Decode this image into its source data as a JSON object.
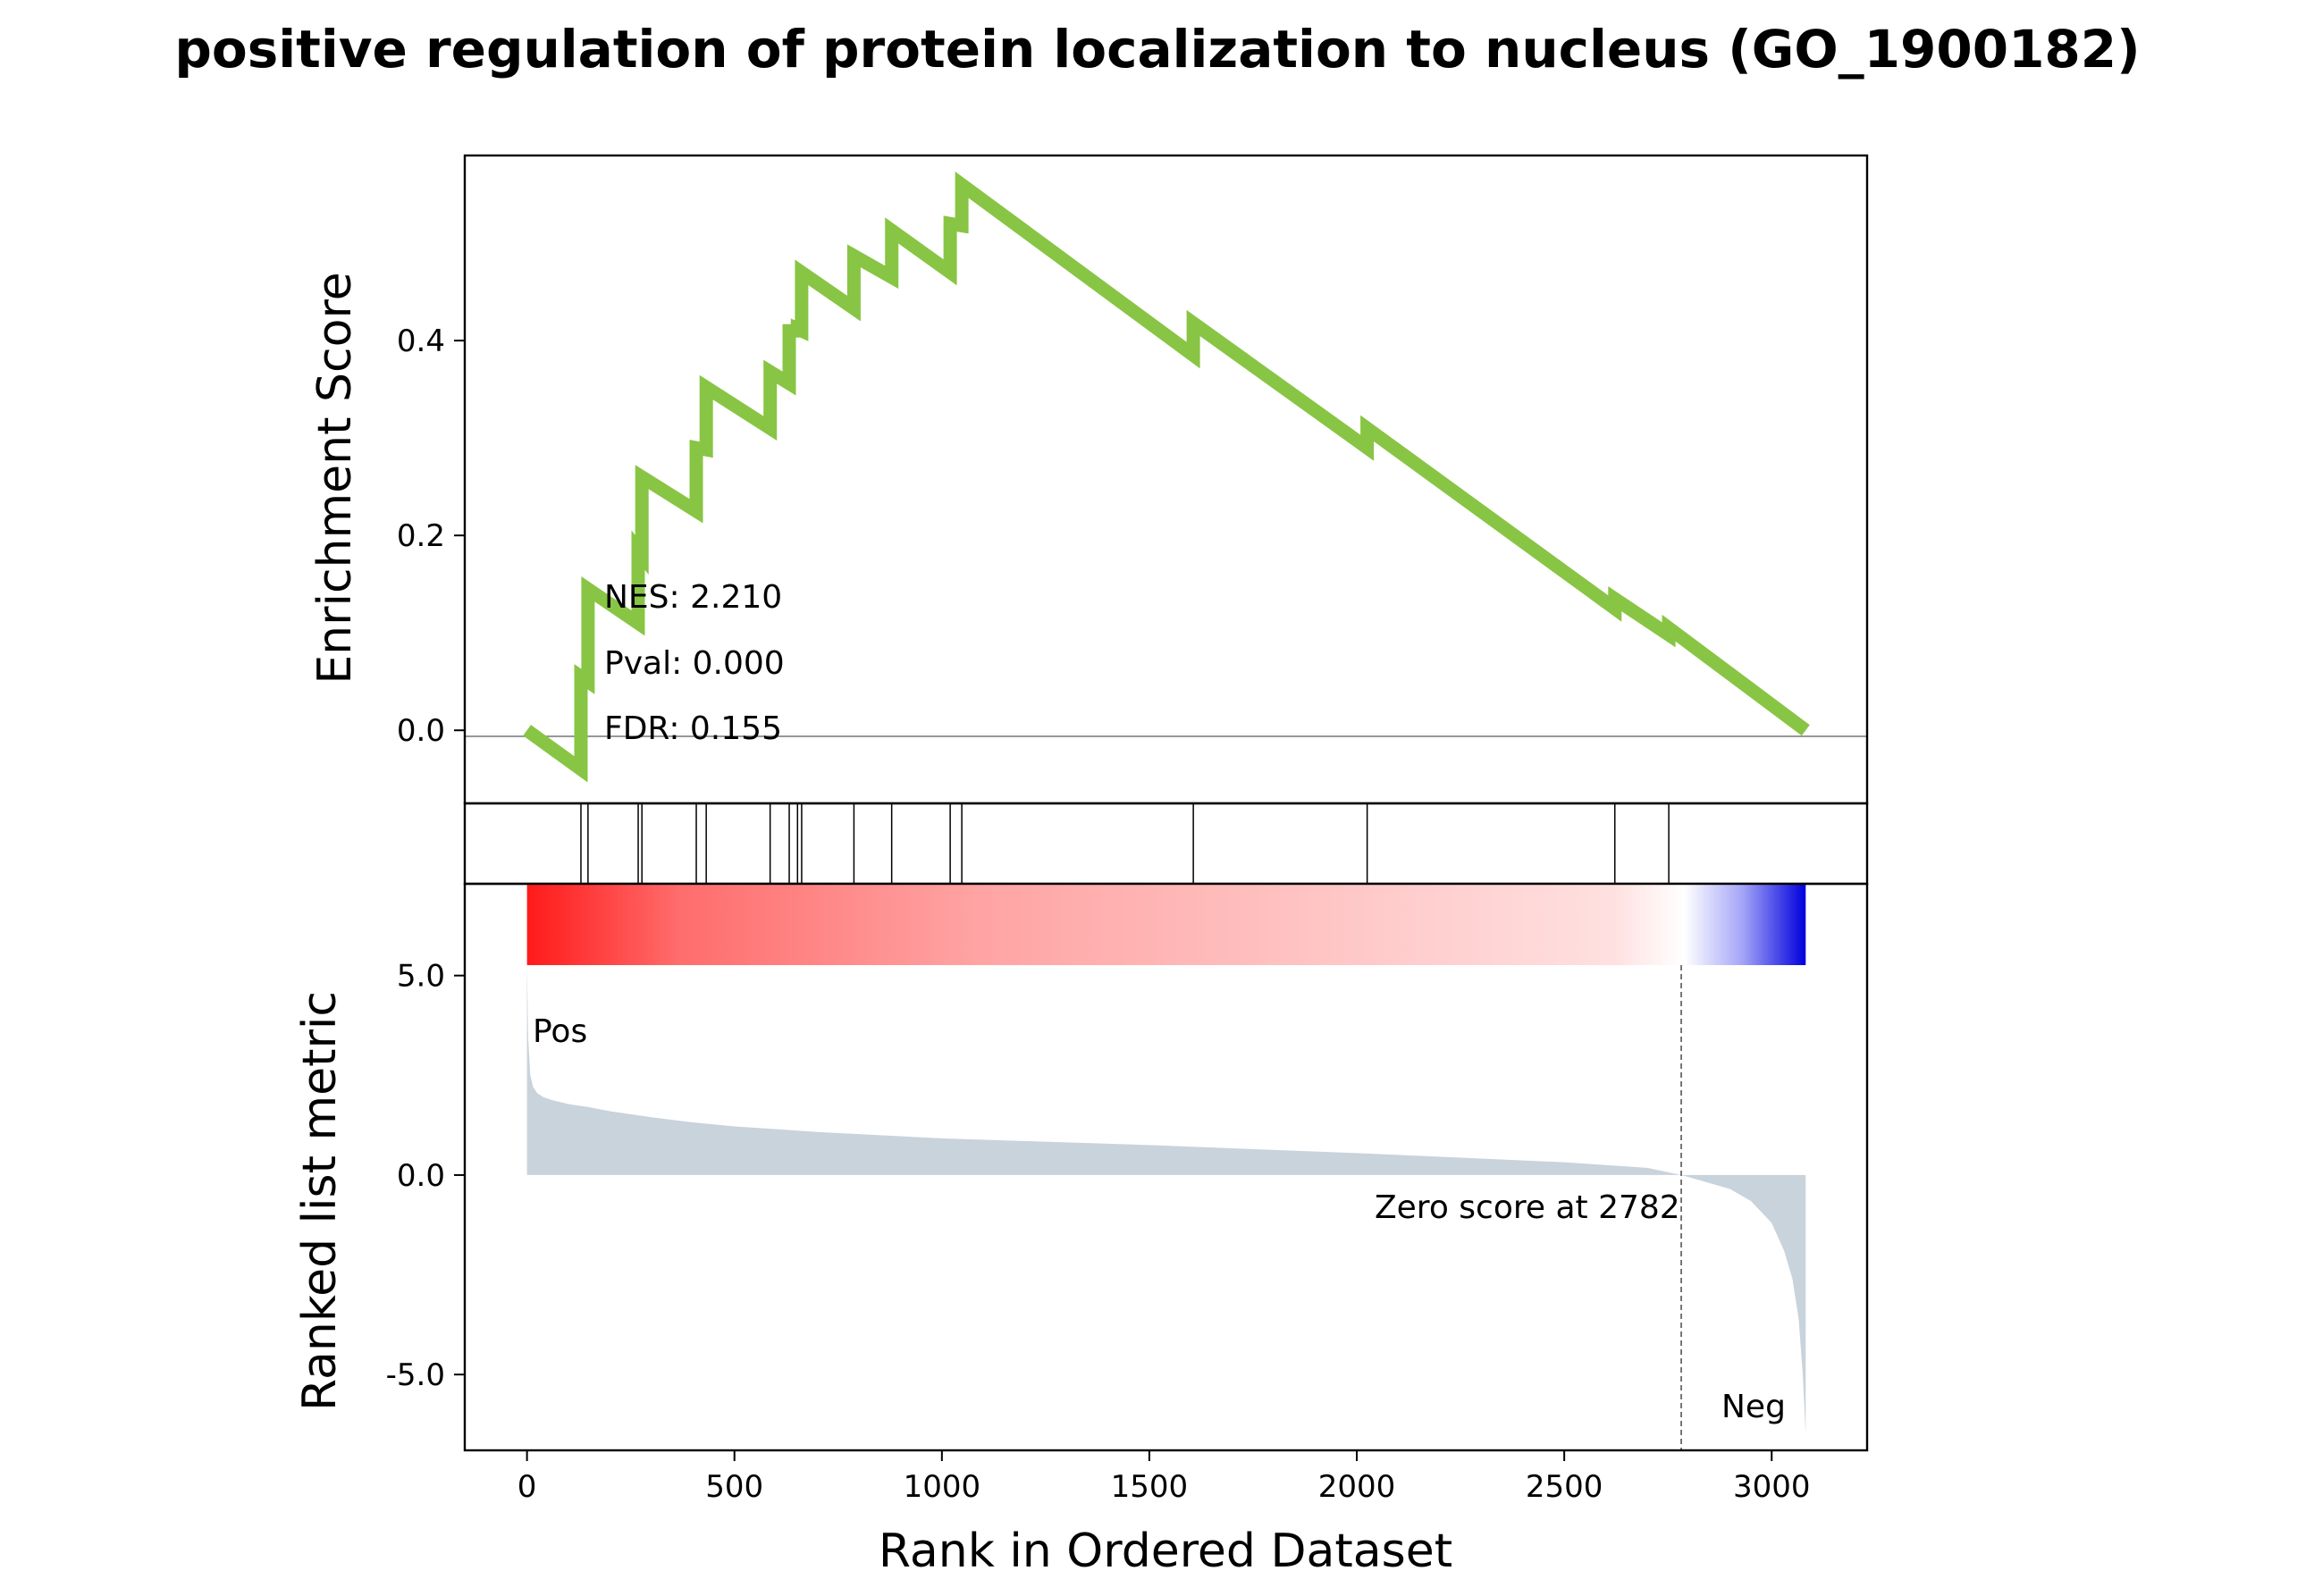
{
  "chart_data": {
    "type": "line",
    "title": "positive regulation of protein localization to nucleus (GO_1900182)",
    "xlabel": "Rank in Ordered Dataset",
    "enrichment_panel": {
      "ylabel": "Enrichment Score",
      "ylim": [
        -0.075,
        0.59
      ],
      "yticks": [
        0.0,
        0.2,
        0.4
      ],
      "ytick_labels": [
        "0.0",
        "0.2",
        "0.4"
      ],
      "line_color": "#88c544",
      "stats": {
        "nes": "NES: 2.210",
        "pval": "Pval: 0.000",
        "fdr": "FDR: 0.155"
      },
      "series": [
        {
          "x": [
            0,
            130,
            130,
            147,
            147,
            268,
            268,
            277,
            277,
            408,
            408,
            432,
            432,
            586,
            586,
            632,
            632,
            652,
            652,
            662,
            662,
            788,
            788,
            879,
            879,
            1020,
            1020,
            1048,
            1048,
            1606,
            1606,
            2025,
            2025,
            2622,
            2622,
            2752,
            2752,
            3082
          ],
          "y": [
            0.0,
            -0.04,
            0.055,
            0.05,
            0.145,
            0.11,
            0.185,
            0.18,
            0.26,
            0.225,
            0.29,
            0.288,
            0.352,
            0.31,
            0.368,
            0.356,
            0.41,
            0.41,
            0.412,
            0.41,
            0.47,
            0.433,
            0.487,
            0.465,
            0.513,
            0.47,
            0.52,
            0.518,
            0.56,
            0.385,
            0.418,
            0.29,
            0.31,
            0.125,
            0.135,
            0.098,
            0.105,
            0.0
          ]
        }
      ]
    },
    "hits_panel": {
      "hits": [
        130,
        147,
        268,
        277,
        408,
        432,
        586,
        632,
        652,
        662,
        788,
        879,
        1020,
        1048,
        1606,
        2025,
        2622,
        2752
      ]
    },
    "ranked_panel": {
      "ylabel": "Ranked list metric",
      "xlim": [
        -150,
        3230
      ],
      "ylim": [
        -6.9,
        7.3
      ],
      "yticks": [
        -5.0,
        0.0,
        5.0
      ],
      "ytick_labels": [
        "-5.0",
        "0.0",
        "5.0"
      ],
      "xticks": [
        0,
        500,
        1000,
        1500,
        2000,
        2500,
        3000
      ],
      "xtick_labels": [
        "0",
        "500",
        "1000",
        "1500",
        "2000",
        "2500",
        "3000"
      ],
      "fill_color": "#c9d3dc",
      "pos_label": "Pos",
      "neg_label": "Neg",
      "pos_color": "#ff0000",
      "neg_color": "#0000ee",
      "zero_score_rank": 2782,
      "zero_score_text": "Zero score at 2782",
      "total_ranks": 3082,
      "metric_curve": {
        "x": [
          0,
          3,
          8,
          15,
          25,
          40,
          60,
          100,
          150,
          200,
          300,
          400,
          500,
          700,
          1000,
          1500,
          2000,
          2500,
          2700,
          2782,
          2850,
          2900,
          2950,
          3000,
          3030,
          3050,
          3065,
          3075,
          3082
        ],
        "y": [
          5.3,
          3.4,
          2.5,
          2.2,
          2.05,
          1.95,
          1.88,
          1.78,
          1.7,
          1.6,
          1.45,
          1.32,
          1.22,
          1.08,
          0.92,
          0.75,
          0.55,
          0.32,
          0.18,
          0.0,
          -0.2,
          -0.35,
          -0.65,
          -1.2,
          -1.9,
          -2.6,
          -3.6,
          -5.0,
          -6.5
        ]
      }
    }
  }
}
